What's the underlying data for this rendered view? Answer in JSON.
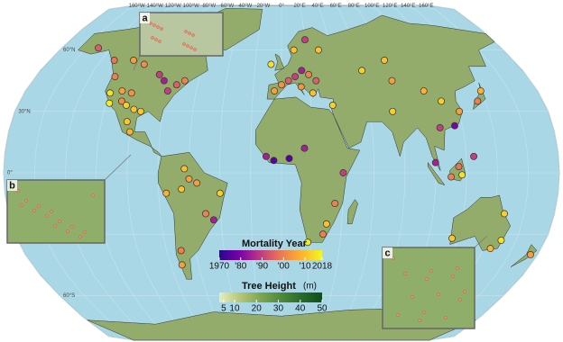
{
  "map": {
    "graticule": {
      "lon_labels": [
        {
          "value": -160,
          "label": "160°W"
        },
        {
          "value": -140,
          "label": "140°W"
        },
        {
          "value": -120,
          "label": "120°W"
        },
        {
          "value": -100,
          "label": "100°W"
        },
        {
          "value": -80,
          "label": "80°W"
        },
        {
          "value": -60,
          "label": "60°W"
        },
        {
          "value": -40,
          "label": "40°W"
        },
        {
          "value": -20,
          "label": "20°W"
        },
        {
          "value": 0,
          "label": "0°"
        },
        {
          "value": 20,
          "label": "20°E"
        },
        {
          "value": 40,
          "label": "40°E"
        },
        {
          "value": 60,
          "label": "60°E"
        },
        {
          "value": 80,
          "label": "80°E"
        },
        {
          "value": 100,
          "label": "100°E"
        },
        {
          "value": 120,
          "label": "120°E"
        },
        {
          "value": 140,
          "label": "140°E"
        },
        {
          "value": 160,
          "label": "160°E"
        }
      ],
      "lat_labels": [
        {
          "value": 60,
          "label": "60°N"
        },
        {
          "value": 30,
          "label": "30°N"
        },
        {
          "value": 0,
          "label": "0°"
        },
        {
          "value": -30,
          "label": "30°S"
        },
        {
          "value": -60,
          "label": "60°S"
        }
      ]
    },
    "insets": [
      "a",
      "b",
      "c"
    ],
    "mortality_year": {
      "title": "Mortality Year",
      "range": [
        1970,
        2018
      ],
      "ticks": [
        {
          "value": 1970,
          "label": "1970"
        },
        {
          "value": 1980,
          "label": "'80"
        },
        {
          "value": 1990,
          "label": "'90"
        },
        {
          "value": 2000,
          "label": "'00"
        },
        {
          "value": 2010,
          "label": "'10"
        },
        {
          "value": 2018,
          "label": "2018"
        }
      ],
      "colors": [
        "#2a0593",
        "#7b02a8",
        "#c03a83",
        "#ed7953",
        "#fdb42f",
        "#f0f921"
      ]
    },
    "tree_height": {
      "title": "Tree Height",
      "unit": "(m)",
      "range": [
        3,
        50
      ],
      "ticks": [
        5,
        10,
        20,
        30,
        40,
        50
      ],
      "colors": [
        "#e8ecc0",
        "#b5c779",
        "#7fa650",
        "#4f8a3a",
        "#2a6b2a",
        "#114d1c"
      ]
    },
    "points": [
      {
        "lon": -122,
        "lat": 47,
        "year": 2000
      },
      {
        "lon": -120,
        "lat": 39,
        "year": 2015
      },
      {
        "lon": -118,
        "lat": 34,
        "year": 2016
      },
      {
        "lon": -112,
        "lat": 40,
        "year": 2005
      },
      {
        "lon": -105,
        "lat": 39,
        "year": 2003
      },
      {
        "lon": -110,
        "lat": 35,
        "year": 2002
      },
      {
        "lon": -106,
        "lat": 33,
        "year": 2012
      },
      {
        "lon": -100,
        "lat": 31,
        "year": 2011
      },
      {
        "lon": -95,
        "lat": 30,
        "year": 2011
      },
      {
        "lon": -85,
        "lat": 45,
        "year": 1985
      },
      {
        "lon": -80,
        "lat": 40,
        "year": 1990
      },
      {
        "lon": -75,
        "lat": 43,
        "year": 1995
      },
      {
        "lon": -70,
        "lat": 45,
        "year": 2000
      },
      {
        "lon": -90,
        "lat": 48,
        "year": 1990
      },
      {
        "lon": -115,
        "lat": 55,
        "year": 2005
      },
      {
        "lon": -105,
        "lat": 53,
        "year": 2002
      },
      {
        "lon": -130,
        "lat": 55,
        "year": 1998
      },
      {
        "lon": -150,
        "lat": 61,
        "year": 1995
      },
      {
        "lon": -100,
        "lat": 20,
        "year": 2008
      },
      {
        "lon": -103,
        "lat": 25,
        "year": 2011
      },
      {
        "lon": -60,
        "lat": -3,
        "year": 2005
      },
      {
        "lon": -65,
        "lat": -8,
        "year": 2010
      },
      {
        "lon": -55,
        "lat": -5,
        "year": 2005
      },
      {
        "lon": -75,
        "lat": -10,
        "year": 2008
      },
      {
        "lon": -50,
        "lat": -20,
        "year": 2000
      },
      {
        "lon": -45,
        "lat": -23,
        "year": 1985
      },
      {
        "lon": -70,
        "lat": -38,
        "year": 2000
      },
      {
        "lon": -72,
        "lat": -45,
        "year": 2005
      },
      {
        "lon": -40,
        "lat": -10,
        "year": 2012
      },
      {
        "lon": -63,
        "lat": 2,
        "year": 2010
      },
      {
        "lon": -5,
        "lat": 40,
        "year": 2005
      },
      {
        "lon": 0,
        "lat": 43,
        "year": 2003
      },
      {
        "lon": 5,
        "lat": 45,
        "year": 1995
      },
      {
        "lon": 10,
        "lat": 47,
        "year": 1990
      },
      {
        "lon": 15,
        "lat": 50,
        "year": 1985
      },
      {
        "lon": 20,
        "lat": 48,
        "year": 2000
      },
      {
        "lon": 25,
        "lat": 45,
        "year": 1995
      },
      {
        "lon": 30,
        "lat": 60,
        "year": 2010
      },
      {
        "lon": 10,
        "lat": 60,
        "year": 2010
      },
      {
        "lon": 20,
        "lat": 65,
        "year": 1990
      },
      {
        "lon": -8,
        "lat": 53,
        "year": 2015
      },
      {
        "lon": 14,
        "lat": 42,
        "year": 2003
      },
      {
        "lon": 22,
        "lat": 39,
        "year": 2010
      },
      {
        "lon": 35,
        "lat": 33,
        "year": 2012
      },
      {
        "lon": -10,
        "lat": 8,
        "year": 1985
      },
      {
        "lon": -5,
        "lat": 6,
        "year": 1975
      },
      {
        "lon": 5,
        "lat": 7,
        "year": 1975
      },
      {
        "lon": 15,
        "lat": 12,
        "year": 1985
      },
      {
        "lon": 30,
        "lat": -25,
        "year": 2010
      },
      {
        "lon": 28,
        "lat": -30,
        "year": 2000
      },
      {
        "lon": 18,
        "lat": -34,
        "year": 2016
      },
      {
        "lon": 35,
        "lat": -15,
        "year": 2000
      },
      {
        "lon": 40,
        "lat": 0,
        "year": 1990
      },
      {
        "lon": 80,
        "lat": 45,
        "year": 2005
      },
      {
        "lon": 100,
        "lat": 40,
        "year": 2008
      },
      {
        "lon": 110,
        "lat": 35,
        "year": 2012
      },
      {
        "lon": 120,
        "lat": 30,
        "year": 2005
      },
      {
        "lon": 105,
        "lat": 22,
        "year": 1990
      },
      {
        "lon": 115,
        "lat": 23,
        "year": 1980
      },
      {
        "lon": 75,
        "lat": 30,
        "year": 2012
      },
      {
        "lon": 135,
        "lat": 35,
        "year": 2000
      },
      {
        "lon": 140,
        "lat": 40,
        "year": 2008
      },
      {
        "lon": 100,
        "lat": 5,
        "year": 1985
      },
      {
        "lon": 110,
        "lat": -2,
        "year": 2000
      },
      {
        "lon": 115,
        "lat": 3,
        "year": 1998
      },
      {
        "lon": 117,
        "lat": -1,
        "year": 2015
      },
      {
        "lon": 125,
        "lat": 8,
        "year": 1990
      },
      {
        "lon": 80,
        "lat": 55,
        "year": 2010
      },
      {
        "lon": 60,
        "lat": 50,
        "year": 2012
      },
      {
        "lon": 116,
        "lat": -32,
        "year": 2011
      },
      {
        "lon": 150,
        "lat": -33,
        "year": 2015
      },
      {
        "lon": 145,
        "lat": -37,
        "year": 2009
      },
      {
        "lon": 147,
        "lat": -20,
        "year": 2012
      },
      {
        "lon": 175,
        "lat": -40,
        "year": 2005
      }
    ]
  }
}
